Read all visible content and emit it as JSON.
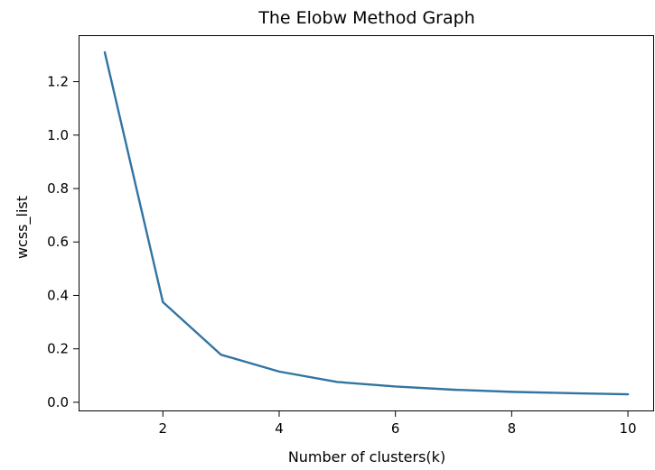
{
  "chart_data": {
    "type": "line",
    "title": "The Elobw Method Graph",
    "xlabel": "Number of clusters(k)",
    "ylabel": "wcss_list",
    "x": [
      1,
      2,
      3,
      4,
      5,
      6,
      7,
      8,
      9,
      10
    ],
    "series": [
      {
        "values": [
          1.31,
          0.375,
          0.178,
          0.115,
          0.076,
          0.059,
          0.047,
          0.039,
          0.034,
          0.03
        ],
        "color": "#3274a1"
      }
    ],
    "xlim": [
      0.55,
      10.45
    ],
    "ylim": [
      -0.034,
      1.374
    ],
    "xticks": [
      2,
      4,
      6,
      8,
      10
    ],
    "xtick_labels": [
      "2",
      "4",
      "6",
      "8",
      "10"
    ],
    "yticks": [
      0.0,
      0.2,
      0.4,
      0.6,
      0.8,
      1.0,
      1.2
    ],
    "ytick_labels": [
      "0.0",
      "0.2",
      "0.4",
      "0.6",
      "0.8",
      "1.0",
      "1.2"
    ],
    "grid": false,
    "legend": "none"
  }
}
